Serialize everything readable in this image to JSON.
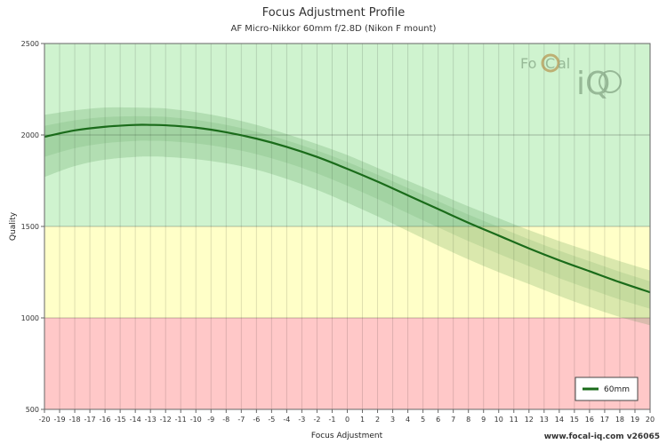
{
  "chart_data": {
    "type": "line",
    "title": "Focus Adjustment Profile",
    "subtitle": "AF Micro-Nikkor 60mm f/2.8D (Nikon F mount)",
    "xlabel": "Focus Adjustment",
    "ylabel": "Quality",
    "xlim": [
      -20,
      20
    ],
    "ylim": [
      500,
      2500
    ],
    "xticks": [
      "-20",
      "-19",
      "-18",
      "-17",
      "-16",
      "-15",
      "-14",
      "-13",
      "-12",
      "-11",
      "-10",
      "-9",
      "-8",
      "-7",
      "-6",
      "-5",
      "-4",
      "-3",
      "-2",
      "-1",
      "0",
      "1",
      "2",
      "3",
      "4",
      "5",
      "6",
      "7",
      "8",
      "9",
      "10",
      "11",
      "12",
      "13",
      "14",
      "15",
      "16",
      "17",
      "18",
      "19",
      "20"
    ],
    "yticks": [
      "500",
      "1000",
      "1500",
      "2000",
      "2500"
    ],
    "bands": [
      {
        "from": 500,
        "to": 1000,
        "color": "#ffc8c8"
      },
      {
        "from": 1000,
        "to": 1500,
        "color": "#ffffc8"
      },
      {
        "from": 1500,
        "to": 2500,
        "color": "#cff3cf"
      }
    ],
    "series": [
      {
        "name": "60mm",
        "color": "#1a6b1a",
        "x": [
          -20,
          -18,
          -16,
          -14,
          -13,
          -12,
          -10,
          -8,
          -6,
          -4,
          -2,
          0,
          2,
          4,
          6,
          8,
          10,
          12,
          14,
          16,
          18,
          20
        ],
        "y": [
          1990,
          2025,
          2045,
          2055,
          2055,
          2053,
          2040,
          2015,
          1980,
          1935,
          1880,
          1815,
          1745,
          1670,
          1595,
          1520,
          1450,
          1380,
          1315,
          1255,
          1195,
          1140
        ],
        "upper": [
          2110,
          2135,
          2150,
          2150,
          2148,
          2145,
          2125,
          2095,
          2055,
          2005,
          1950,
          1890,
          1820,
          1750,
          1680,
          1610,
          1545,
          1480,
          1420,
          1365,
          1310,
          1260
        ],
        "lower": [
          1770,
          1830,
          1865,
          1880,
          1882,
          1880,
          1868,
          1845,
          1810,
          1760,
          1700,
          1630,
          1555,
          1475,
          1395,
          1320,
          1250,
          1185,
          1120,
          1060,
          1005,
          960
        ]
      }
    ],
    "legend": {
      "placement": "bottom-right"
    }
  },
  "footer": "www.focal-iq.com  v26065",
  "watermark": {
    "text_a": "Fo",
    "text_b": "C",
    "text_c": "al",
    "text_d": "iQ"
  }
}
